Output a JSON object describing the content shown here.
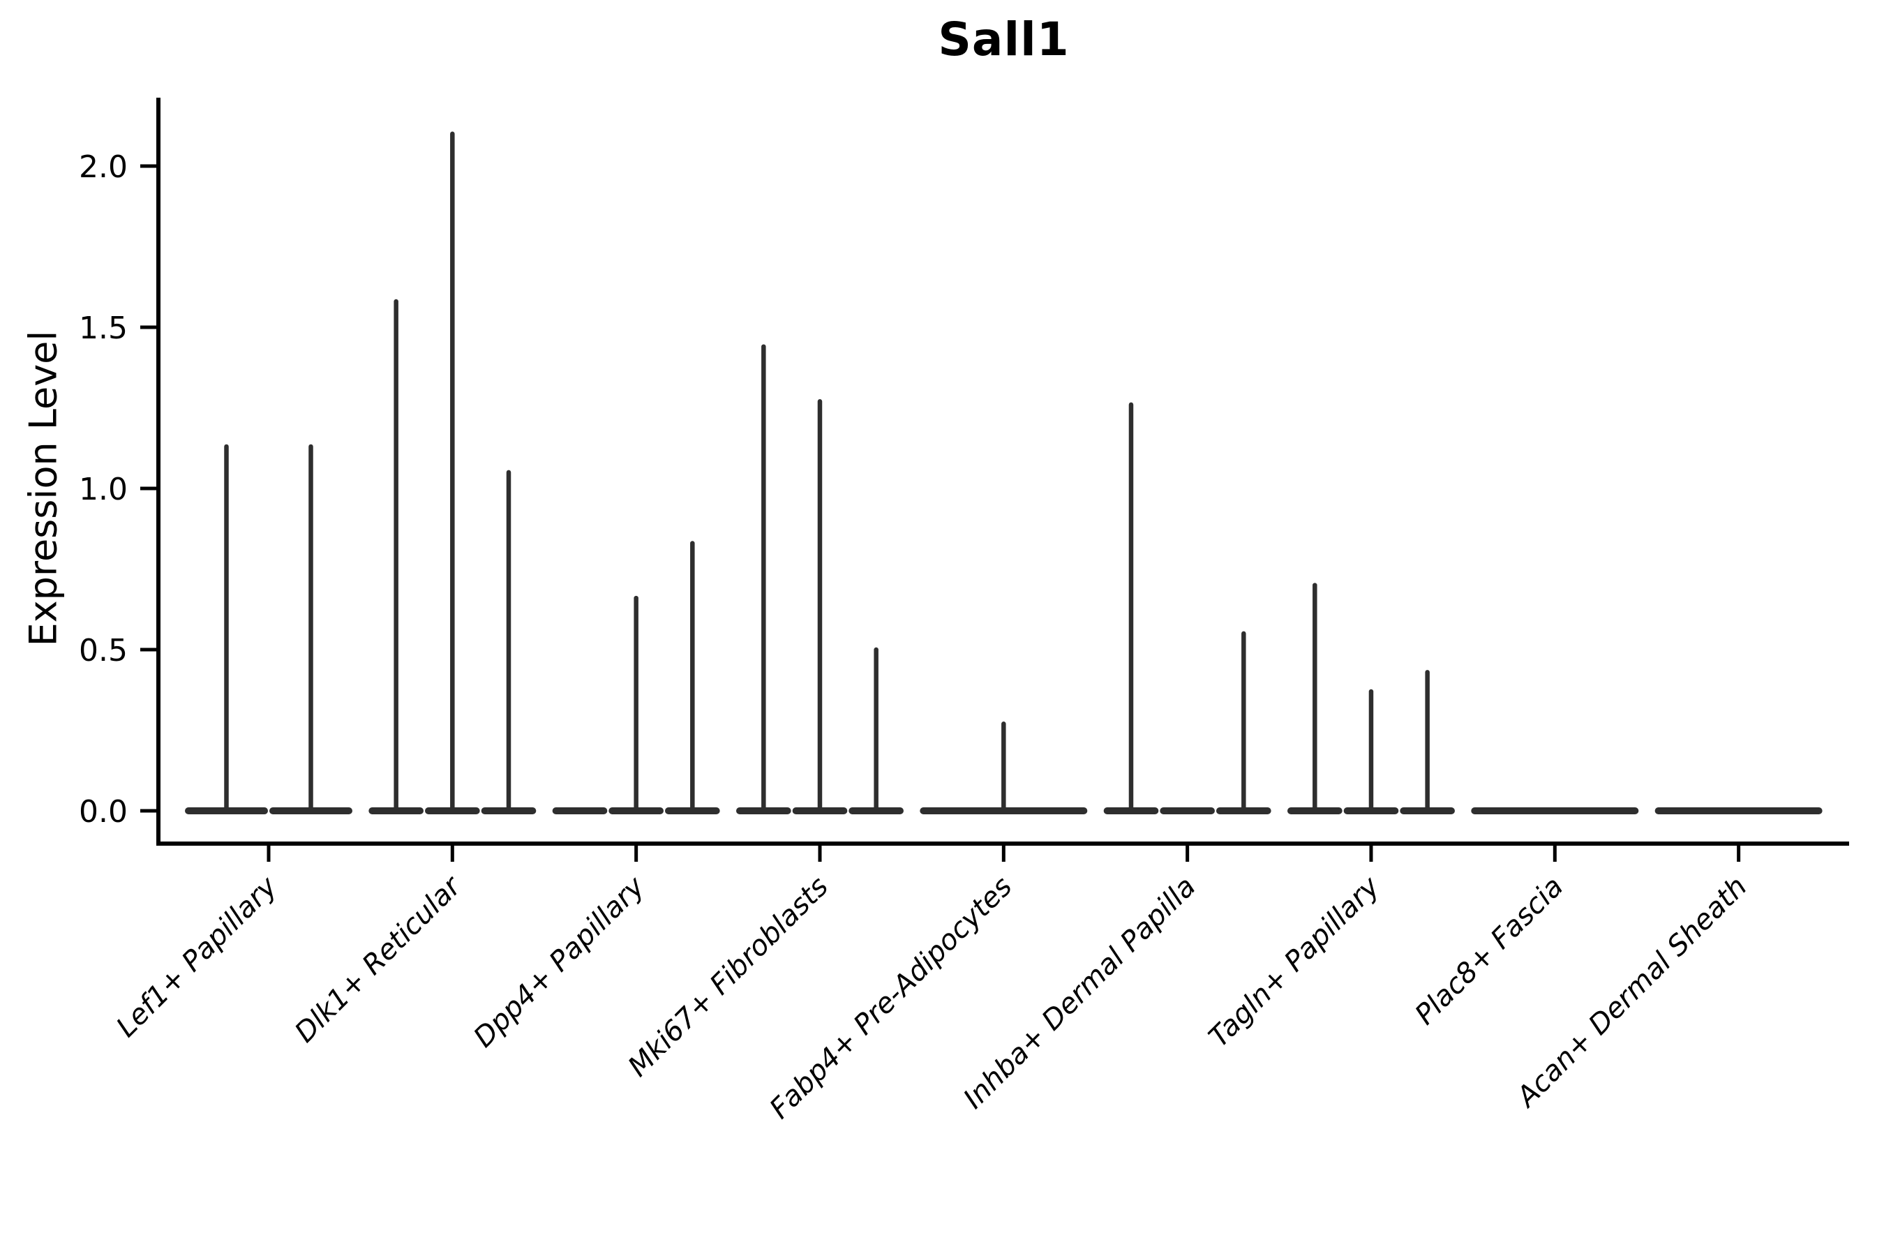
{
  "chart_data": {
    "type": "violin",
    "title": "Sall1",
    "ylabel": "Expression Level",
    "xlabel": "",
    "yticks": [
      "0.0",
      "0.5",
      "1.0",
      "1.5",
      "2.0"
    ],
    "ytick_values": [
      0.0,
      0.5,
      1.0,
      1.5,
      2.0
    ],
    "ylim": [
      -0.1,
      2.2
    ],
    "grid": false,
    "legend": "none",
    "categories": [
      "Lef1+ Papillary",
      "Dlk1+ Reticular",
      "Dpp4+ Papillary",
      "Mki67+ Fibroblasts",
      "Fabp4+ Pre-Adipocytes",
      "Inhba+ Dermal Papilla",
      "Tagln+ Papillary",
      "Plac8+ Fascia",
      "Acan+ Dermal Sheath"
    ],
    "groups": [
      {
        "category": "Lef1+ Papillary",
        "violin_maxima": [
          1.13,
          1.13
        ]
      },
      {
        "category": "Dlk1+ Reticular",
        "violin_maxima": [
          1.58,
          2.1,
          1.05
        ]
      },
      {
        "category": "Dpp4+ Papillary",
        "violin_maxima": [
          0,
          0.66,
          0.83
        ]
      },
      {
        "category": "Mki67+ Fibroblasts",
        "violin_maxima": [
          1.44,
          1.27,
          0.5
        ]
      },
      {
        "category": "Fabp4+ Pre-Adipocytes",
        "violin_maxima": [
          0.27
        ]
      },
      {
        "category": "Inhba+ Dermal Papilla",
        "violin_maxima": [
          1.26,
          0,
          0.55
        ]
      },
      {
        "category": "Tagln+ Papillary",
        "violin_maxima": [
          0.7,
          0.37,
          0.43
        ]
      },
      {
        "category": "Plac8+ Fascia",
        "violin_maxima": [
          0
        ]
      },
      {
        "category": "Acan+ Dermal Sheath",
        "violin_maxima": [
          0
        ]
      }
    ],
    "colors": {
      "violin": "#2e2e2e",
      "axis": "#000000",
      "text": "#000000",
      "background": "#ffffff"
    }
  }
}
